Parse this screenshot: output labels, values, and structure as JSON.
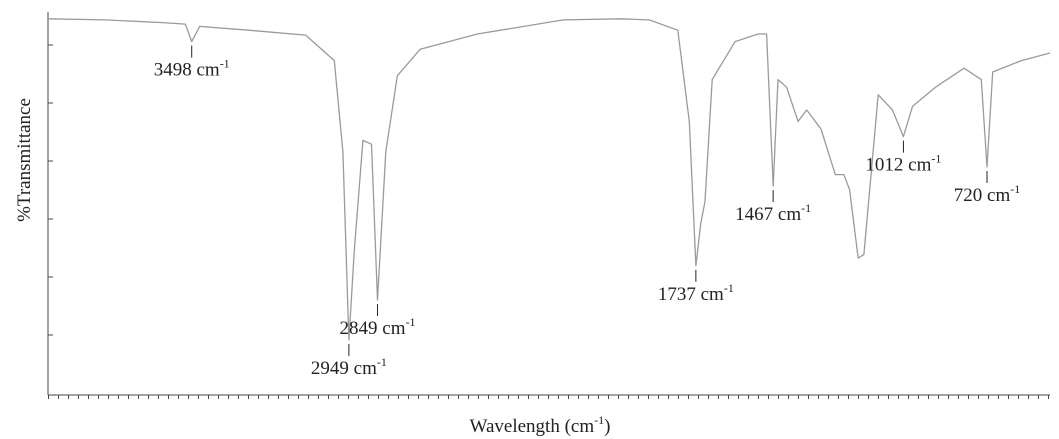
{
  "chart_data": {
    "type": "line",
    "xlabel": {
      "text": "Wavelength (cm",
      "sup": "-1",
      "tail": ")"
    },
    "ylabel": "%Transmittance",
    "xlim": [
      4000,
      500
    ],
    "ylim": [
      0,
      100
    ],
    "color": "#9a9a9a",
    "x": [
      4000,
      3800,
      3600,
      3520,
      3498,
      3470,
      3300,
      3100,
      3000,
      2970,
      2949,
      2930,
      2900,
      2870,
      2849,
      2820,
      2780,
      2700,
      2500,
      2200,
      2000,
      1900,
      1800,
      1760,
      1737,
      1720,
      1705,
      1680,
      1600,
      1520,
      1490,
      1467,
      1450,
      1420,
      1380,
      1350,
      1300,
      1250,
      1220,
      1200,
      1170,
      1150,
      1100,
      1050,
      1012,
      980,
      900,
      800,
      740,
      720,
      700,
      600,
      500
    ],
    "values": [
      99,
      98.7,
      98,
      97.6,
      93,
      97,
      96,
      94.7,
      88,
      64,
      14.5,
      38,
      67,
      66,
      25,
      64,
      84,
      91,
      95,
      98.7,
      99,
      98.7,
      96,
      72,
      34,
      45,
      51,
      83,
      93,
      95,
      95,
      55,
      83,
      81,
      72,
      75,
      70,
      58,
      58,
      54,
      36,
      37,
      79,
      75,
      68,
      76,
      81,
      86,
      83,
      60,
      85,
      88,
      90
    ],
    "annotations": [
      {
        "text": "3498 cm",
        "sup": "-1",
        "x": 3498
      },
      {
        "text": "2949 cm",
        "sup": "-1",
        "x": 2949
      },
      {
        "text": "2849 cm",
        "sup": "-1",
        "x": 2849
      },
      {
        "text": "1737 cm",
        "sup": "-1",
        "x": 1737
      },
      {
        "text": "1467 cm",
        "sup": "-1",
        "x": 1467
      },
      {
        "text": "1012 cm",
        "sup": "-1",
        "x": 1012
      },
      {
        "text": "720 cm",
        "sup": "-1",
        "x": 720
      }
    ]
  }
}
